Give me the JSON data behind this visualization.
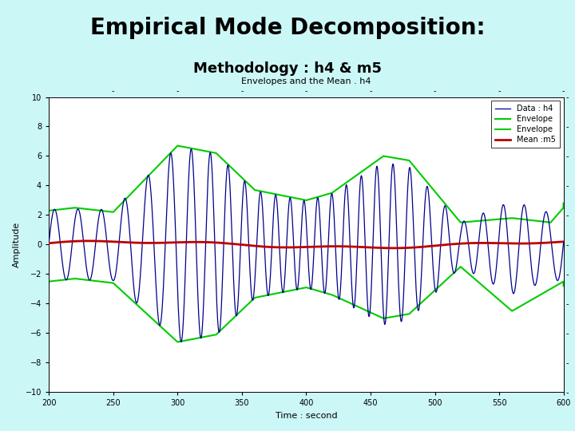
{
  "title_main": "Empirical Mode Decomposition:",
  "title_sub": "Methodology : h4 & m5",
  "plot_title": "Envelopes and the Mean . h4",
  "xlabel": "Time : second",
  "ylabel": "Amplitude",
  "xlim": [
    200,
    600
  ],
  "ylim": [
    -10,
    10
  ],
  "xticks": [
    200,
    250,
    300,
    350,
    400,
    450,
    500,
    550,
    600
  ],
  "yticks": [
    -10,
    -8,
    -6,
    -4,
    -2,
    0,
    2,
    4,
    6,
    8,
    10
  ],
  "legend_labels": [
    "Data : h4",
    "Envelope",
    "Envelope",
    "Mean :m5"
  ],
  "data_color": "#00008B",
  "upper_env_color": "#00CC00",
  "lower_env_color": "#00CC00",
  "mean_color": "#BB0000",
  "header_bg": "#ccf7f7",
  "plot_bg": "#ffffff",
  "fig_bg": "#ccf7f7",
  "title_fontsize": 20,
  "subtitle_fontsize": 13,
  "plot_title_fontsize": 8,
  "axis_fontsize": 8,
  "tick_fontsize": 7,
  "legend_fontsize": 7
}
